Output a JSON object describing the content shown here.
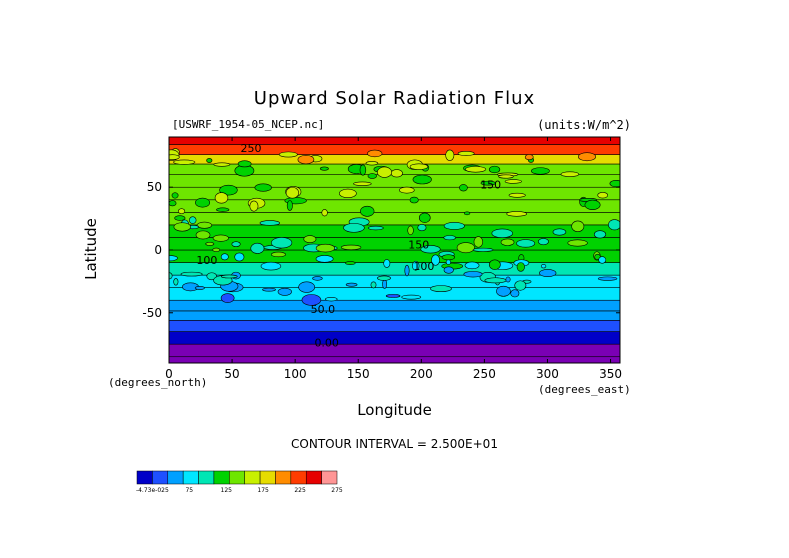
{
  "chart_data": {
    "type": "heatmap",
    "title": "Upward Solar Radiation Flux",
    "source_label": "[USWRF_1954-05_NCEP.nc]",
    "units_label": "(units:W/m^2)",
    "xlabel": "Longitude",
    "ylabel": "Latitude",
    "x_units": "(degrees_east)",
    "y_units": "(degrees_north)",
    "xlim": [
      0,
      357.5
    ],
    "ylim": [
      -90,
      90
    ],
    "x_ticks": [
      0,
      50,
      100,
      150,
      200,
      250,
      300,
      350
    ],
    "y_ticks": [
      -50,
      0,
      50
    ],
    "contour_interval_text": "CONTOUR INTERVAL = 2.500E+01",
    "contour_labels": [
      {
        "text": "250",
        "x": 65,
        "y": 78
      },
      {
        "text": "150",
        "x": 255,
        "y": 49
      },
      {
        "text": "150",
        "x": 198,
        "y": 1
      },
      {
        "text": "100",
        "x": 202,
        "y": -16
      },
      {
        "text": "100",
        "x": 30,
        "y": -11
      },
      {
        "text": "50.0",
        "x": 122,
        "y": -50
      },
      {
        "text": "0.00",
        "x": 125,
        "y": -77
      }
    ],
    "zonal_mean_by_latitude": [
      {
        "lat": -90,
        "value": 0
      },
      {
        "lat": -80,
        "value": 0
      },
      {
        "lat": -70,
        "value": 10
      },
      {
        "lat": -60,
        "value": 30
      },
      {
        "lat": -52,
        "value": 55
      },
      {
        "lat": -45,
        "value": 70
      },
      {
        "lat": -35,
        "value": 85
      },
      {
        "lat": -25,
        "value": 95
      },
      {
        "lat": -15,
        "value": 110
      },
      {
        "lat": -5,
        "value": 130
      },
      {
        "lat": 5,
        "value": 140
      },
      {
        "lat": 15,
        "value": 135
      },
      {
        "lat": 25,
        "value": 150
      },
      {
        "lat": 35,
        "value": 165
      },
      {
        "lat": 45,
        "value": 155
      },
      {
        "lat": 55,
        "value": 150
      },
      {
        "lat": 65,
        "value": 165
      },
      {
        "lat": 72,
        "value": 215
      },
      {
        "lat": 80,
        "value": 255
      },
      {
        "lat": 88,
        "value": 275
      }
    ],
    "colorbar": {
      "tick_labels": [
        "-4.73e-025",
        "75",
        "125",
        "175",
        "225",
        "275"
      ],
      "colors": [
        "#0000c8",
        "#1e50ff",
        "#00a0ff",
        "#00e6ff",
        "#00e6b4",
        "#00d200",
        "#6ee600",
        "#c8f000",
        "#e6dc00",
        "#ff8c00",
        "#ff3c00",
        "#e60000",
        "#ff9696"
      ]
    }
  }
}
